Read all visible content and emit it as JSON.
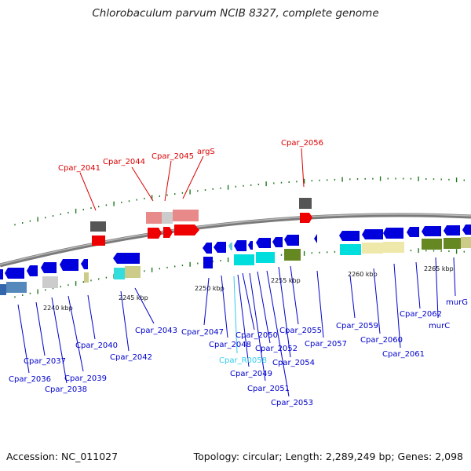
{
  "title": "Chlorobaculum parvum NCIB 8327, complete genome",
  "footer": {
    "accession": "Accession: NC_011027",
    "summary": "Topology: circular; Length: 2,289,249 bp; Genes: 2,098"
  },
  "colors": {
    "forward_label": "#dd0000",
    "reverse_label": "#0000cc",
    "rna_label": "#33ccee",
    "backbone": "#888888",
    "tick": "#227722"
  },
  "scale": [
    "2240 kbp",
    "2245 kbp",
    "2250 kbp",
    "2255 kbp",
    "2260 kbp",
    "2265 kbp"
  ],
  "forward_genes": [
    "Cpar_2041",
    "Cpar_2044",
    "Cpar_2045",
    "argS",
    "Cpar_2056"
  ],
  "reverse_genes": [
    "Cpar_2036",
    "Cpar_2037",
    "Cpar_2038",
    "Cpar_2039",
    "Cpar_2040",
    "Cpar_2042",
    "Cpar_2043",
    "Cpar_2047",
    "Cpar_2048",
    "Cpar_R0058",
    "Cpar_2049",
    "Cpar_2050",
    "Cpar_2051",
    "Cpar_2052",
    "Cpar_2053",
    "Cpar_2054",
    "Cpar_2055",
    "Cpar_2057",
    "Cpar_2059",
    "Cpar_2060",
    "Cpar_2061",
    "Cpar_2062",
    "murC",
    "murG"
  ]
}
